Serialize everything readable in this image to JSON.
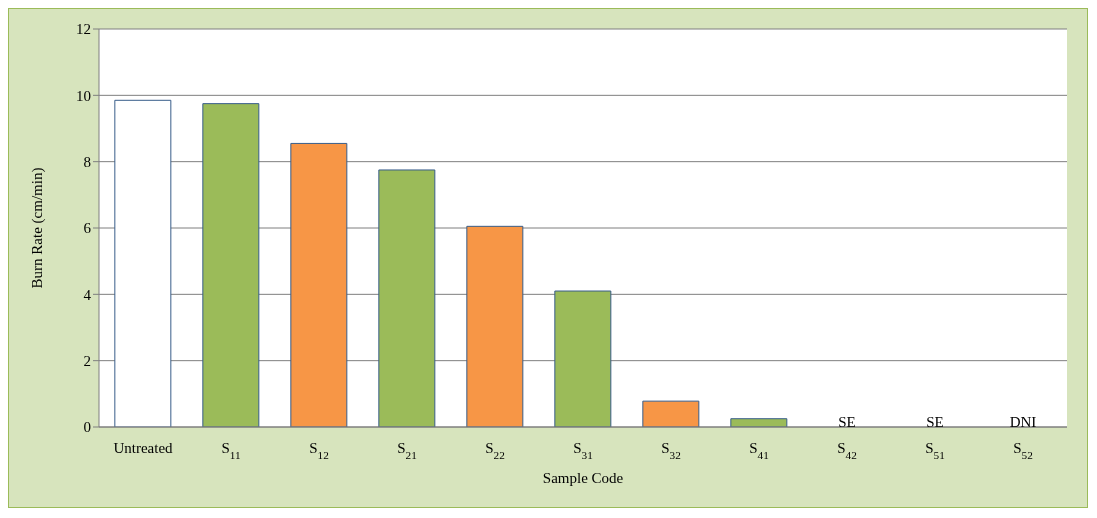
{
  "chart_data": {
    "type": "bar",
    "xlabel": "Sample Code",
    "ylabel": "Burn Rate (cm/min)",
    "categories": [
      "Untreated",
      "S$_{11}$",
      "S$_{12}$",
      "S$_{21}$",
      "S$_{22}$",
      "S$_{31}$",
      "S$_{32}$",
      "S$_{41}$",
      "S$_{42}$",
      "S$_{51}$",
      "S$_{52}$"
    ],
    "values": [
      9.85,
      9.75,
      8.55,
      7.75,
      6.05,
      4.1,
      0.78,
      0.25,
      null,
      null,
      null
    ],
    "colors": [
      "#ffffff",
      "#9bbb59",
      "#f79646",
      "#9bbb59",
      "#f79646",
      "#9bbb59",
      "#f79646",
      "#9bbb59",
      "#9bbb59",
      "#9bbb59",
      "#9bbb59"
    ],
    "value_labels": [
      null,
      null,
      null,
      null,
      null,
      null,
      null,
      null,
      "SE",
      "SE",
      "DNI"
    ],
    "ylim": [
      0,
      12
    ],
    "yticks": [
      0,
      2,
      4,
      6,
      8,
      10,
      12
    ],
    "grid": "y"
  }
}
